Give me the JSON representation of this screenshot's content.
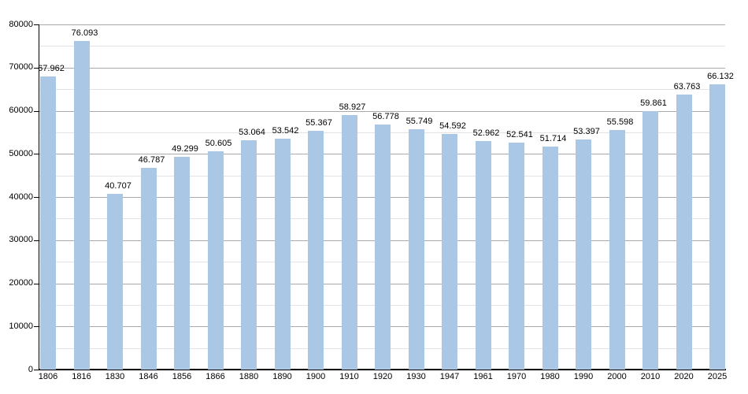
{
  "chart_data": {
    "type": "bar",
    "title": "",
    "xlabel": "",
    "ylabel": "",
    "categories": [
      "1806",
      "1816",
      "1830",
      "1846",
      "1856",
      "1866",
      "1880",
      "1890",
      "1900",
      "1910",
      "1920",
      "1930",
      "1947",
      "1961",
      "1970",
      "1980",
      "1990",
      "2000",
      "2010",
      "2020",
      "2025"
    ],
    "values": [
      67962,
      76093,
      40707,
      46787,
      49299,
      50605,
      53064,
      53542,
      55367,
      58927,
      56778,
      55749,
      54592,
      52962,
      52541,
      51714,
      53397,
      55598,
      59861,
      63763,
      66132
    ],
    "value_labels": [
      "67.962",
      "76.093",
      "40.707",
      "46.787",
      "49.299",
      "50.605",
      "53.064",
      "53.542",
      "55.367",
      "58.927",
      "56.778",
      "55.749",
      "54.592",
      "52.962",
      "52.541",
      "51.714",
      "53.397",
      "55.598",
      "59.861",
      "63.763",
      "66.132"
    ],
    "ylim": [
      0,
      80000
    ],
    "y_major_step": 10000,
    "y_minor_step": 5000,
    "y_tick_labels": [
      "0",
      "10000",
      "20000",
      "30000",
      "40000",
      "50000",
      "60000",
      "70000",
      "80000"
    ],
    "grid": "on",
    "legend_position": "none",
    "colors": {
      "bar_fill": "#aac8e6",
      "major_gridline": "#aaaaaa",
      "minor_gridline": "#e3e3e3",
      "axis_line": "#000000",
      "text": "#000000",
      "background": "#ffffff"
    }
  }
}
